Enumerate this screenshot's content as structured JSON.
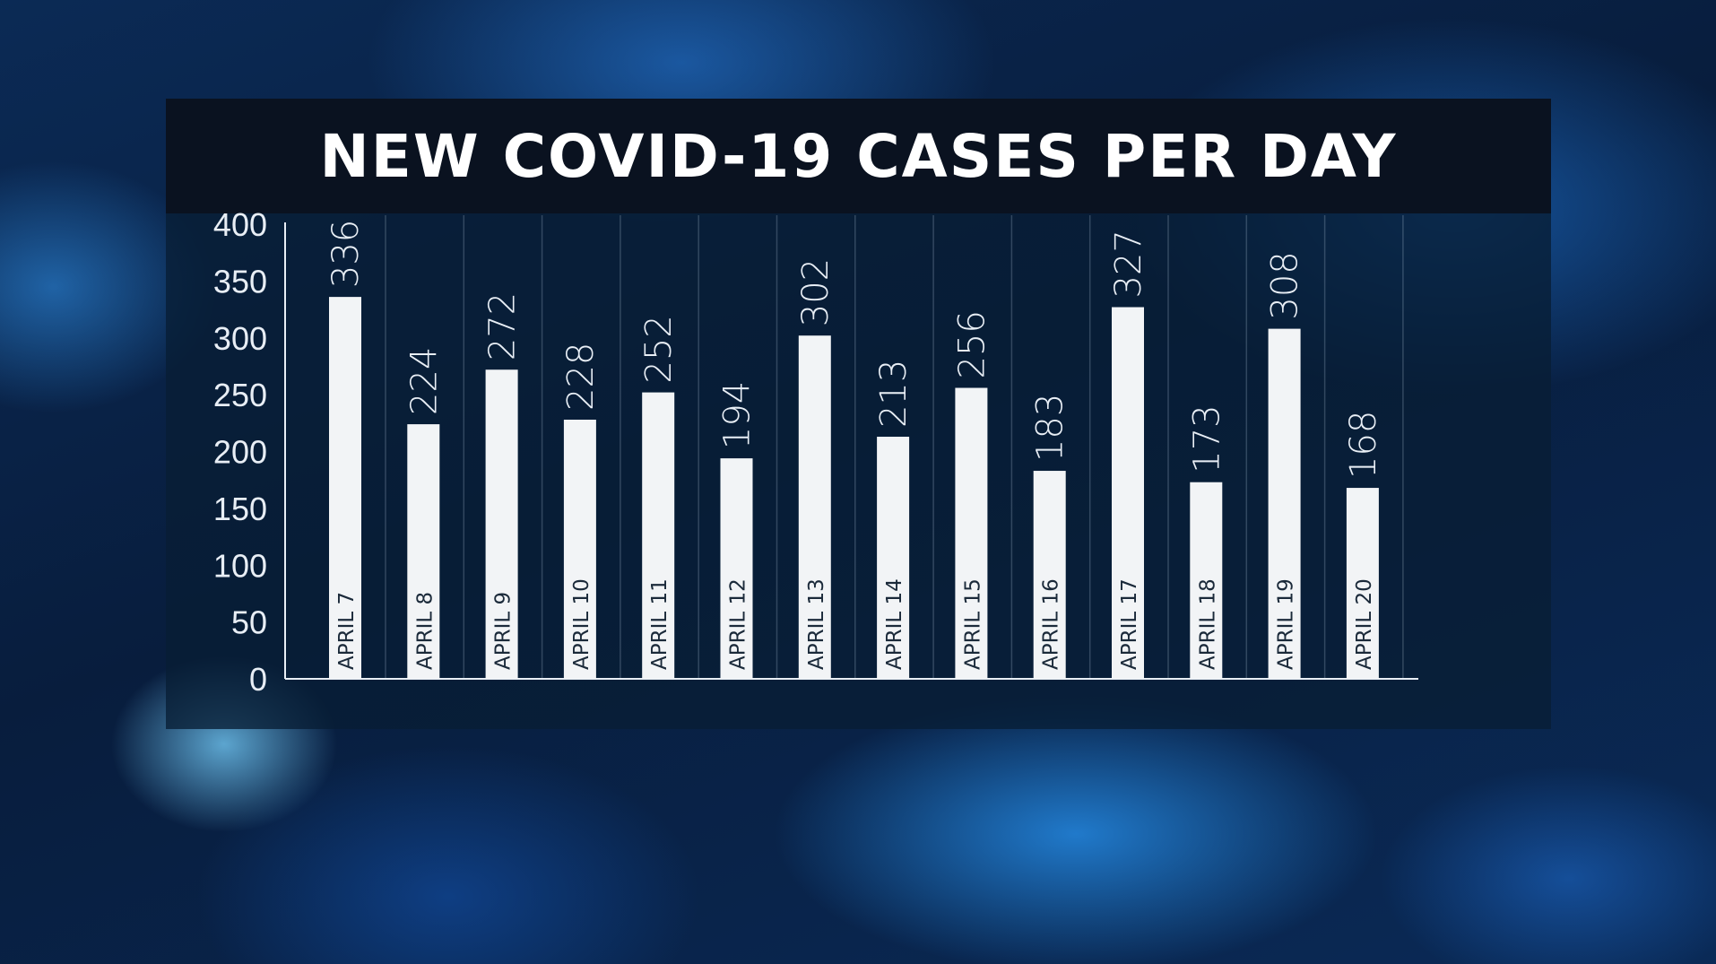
{
  "chart_data": {
    "type": "bar",
    "title": "NEW COVID-19 CASES PER DAY",
    "xlabel": "",
    "ylabel": "",
    "ylim": [
      0,
      400
    ],
    "yticks": [
      0,
      50,
      100,
      150,
      200,
      250,
      300,
      350,
      400
    ],
    "categories": [
      "APRIL 7",
      "APRIL 8",
      "APRIL 9",
      "APRIL 10",
      "APRIL 11",
      "APRIL 12",
      "APRIL 13",
      "APRIL 14",
      "APRIL 15",
      "APRIL 16",
      "APRIL 17",
      "APRIL 18",
      "APRIL 19",
      "APRIL 20"
    ],
    "values": [
      336,
      224,
      272,
      228,
      252,
      194,
      302,
      213,
      256,
      183,
      327,
      173,
      308,
      168
    ],
    "bar_color": "#f2f4f6",
    "label_color": "#e8eef5",
    "grid": true,
    "legend": "none"
  }
}
